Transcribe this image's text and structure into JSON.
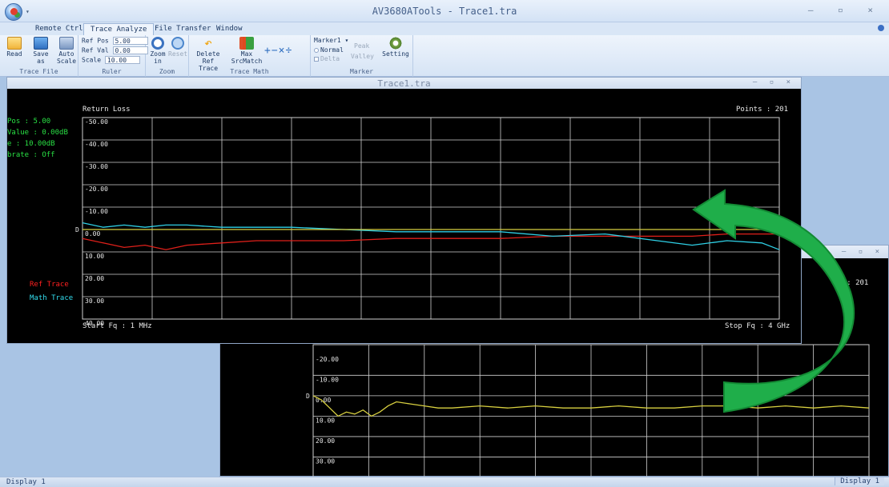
{
  "app": {
    "title": "AV3680ATools - Trace1.tra",
    "qat": "▾",
    "window_buttons": "– ▫ ×"
  },
  "menu": {
    "tabs": [
      "Remote Ctrl",
      "Trace Analyze",
      "File Transfer",
      "Window"
    ],
    "active": 1
  },
  "ribbon": {
    "trace_file": {
      "label": "Trace File",
      "read": "Read",
      "read_arrow": "▾",
      "save_as": "Save as",
      "save_as_arrow": "as ▾",
      "auto_scale": "Auto Scale"
    },
    "ruler": {
      "label": "Ruler",
      "ref_pos_label": "Ref Pos",
      "ref_pos_value": "5.00",
      "ref_val_label": "Ref Val",
      "ref_val_value": "0.00",
      "scale_label": "Scale",
      "scale_value": "10.00"
    },
    "zoom": {
      "label": "Zoom",
      "zoom_in": "Zoom in",
      "reset": "Reset"
    },
    "trace_math": {
      "label": "Trace Math",
      "delete_ref": "Delete Ref Trace",
      "max": "Max SrcMatch",
      "ops": "+−×÷"
    },
    "marker": {
      "label": "Marker",
      "marker_select": "Marker1 ▾",
      "normal": "Normal",
      "delta": "Delta",
      "peak": "Peak",
      "valley": "Valley",
      "setting": "Setting"
    }
  },
  "window1": {
    "title": "Trace1.tra",
    "buttons": "– ▫ ×",
    "info": [
      "Pos   :  5.00",
      "Value :  0.00dB",
      "e     :  10.00dB",
      "brate :  Off"
    ],
    "legend_ref": "Ref Trace",
    "legend_math": "Math Trace"
  },
  "window2": {
    "buttons": "– ▫ ×",
    "points": "ts : 201",
    "y_ticks": [
      "-20.00",
      "-10.00",
      "0.00",
      "10.00",
      "20.00",
      "30.00",
      "40.00"
    ]
  },
  "status": {
    "left": "Display 1",
    "right": "Display 1"
  },
  "colors": {
    "ref_trace": "#e0201a",
    "math_trace": "#2fd0e6",
    "src_trace": "#d8d040",
    "grid": "#d0d0d0",
    "overlay_arrow": "#1fae4a"
  },
  "chart_data": [
    {
      "type": "line",
      "title": "Return Loss",
      "points_label": "Points : 201",
      "x_start_label": "Start Fq : 1 MHz",
      "x_end_label": "Stop Fq : 4 GHz",
      "x_range": [
        1,
        4000
      ],
      "ylim": [
        -50,
        40
      ],
      "y_ticks": [
        "-50.00",
        "-40.00",
        "-30.00",
        "-20.00",
        "-10.00",
        "0.00",
        "10.00",
        "20.00",
        "30.00",
        "40.00"
      ],
      "ref_marker": "D",
      "series": [
        {
          "name": "Ref Trace",
          "color": "#e0201a",
          "x": [
            1,
            120,
            240,
            360,
            480,
            600,
            800,
            1000,
            1200,
            1500,
            1800,
            2100,
            2400,
            2700,
            3000,
            3300,
            3500,
            3700,
            3900,
            4000
          ],
          "values": [
            4,
            6,
            8,
            7,
            9,
            7,
            6,
            5,
            5,
            5,
            4,
            4,
            4,
            3,
            3,
            3,
            3,
            2,
            2,
            2
          ]
        },
        {
          "name": "Math Trace",
          "color": "#2fd0e6",
          "x": [
            1,
            120,
            240,
            360,
            480,
            600,
            800,
            1000,
            1200,
            1500,
            1800,
            2100,
            2400,
            2700,
            3000,
            3300,
            3500,
            3700,
            3900,
            4000
          ],
          "values": [
            -3,
            -1,
            -2,
            -1,
            -2,
            -2,
            -1,
            -1,
            -1,
            0,
            1,
            1,
            1,
            3,
            2,
            5,
            7,
            5,
            6,
            9
          ]
        },
        {
          "color": "#d8d040",
          "x": [
            1,
            400,
            800,
            1200,
            1600,
            2000,
            2400,
            2800,
            3200,
            3600,
            4000
          ],
          "values": [
            0,
            0,
            0,
            0,
            0,
            0,
            0,
            0,
            0,
            0,
            0
          ]
        }
      ]
    },
    {
      "type": "line",
      "ylim": [
        -25,
        40
      ],
      "series": [
        {
          "color": "#d8d040",
          "x": [
            1,
            60,
            120,
            180,
            240,
            300,
            360,
            420,
            480,
            540,
            600,
            700,
            800,
            900,
            1000,
            1200,
            1400,
            1600,
            1800,
            2000,
            2200,
            2400,
            2600,
            2800,
            3000,
            3200,
            3400,
            3600,
            3800,
            4000
          ],
          "values": [
            0,
            2,
            6,
            10,
            8,
            9,
            7,
            10,
            8,
            5,
            3,
            4,
            5,
            6,
            6,
            5,
            6,
            5,
            6,
            6,
            5,
            6,
            6,
            5,
            5,
            6,
            5,
            6,
            5,
            6
          ]
        }
      ]
    }
  ]
}
